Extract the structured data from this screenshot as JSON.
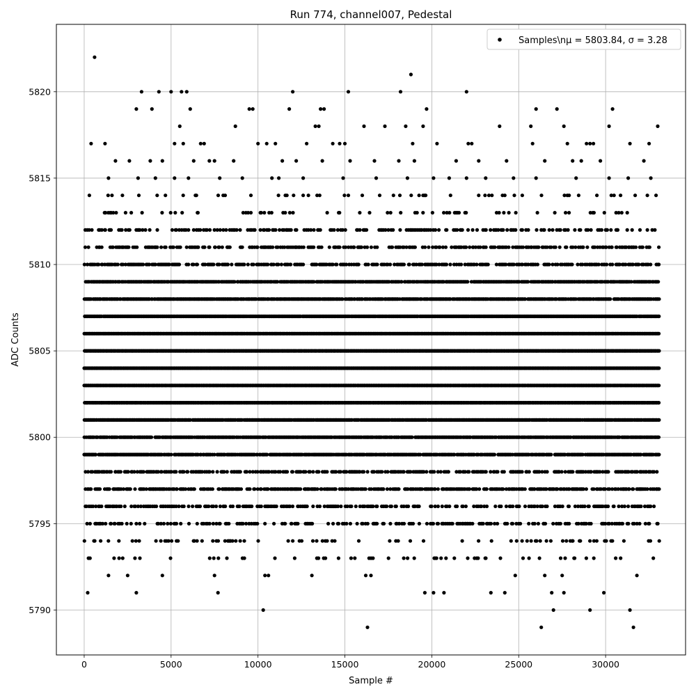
{
  "chart_data": {
    "type": "scatter",
    "title": "Run 774, channel007, Pedestal",
    "xlabel": "Sample #",
    "ylabel": "ADC Counts",
    "xlim": [
      -1600,
      34600
    ],
    "ylim": [
      5787.4,
      5823.9
    ],
    "xticks": [
      0,
      5000,
      10000,
      15000,
      20000,
      25000,
      30000
    ],
    "yticks": [
      5790,
      5795,
      5800,
      5805,
      5810,
      5815,
      5820
    ],
    "grid": true,
    "legend_position": "top-right",
    "marker_color": "#000000",
    "series": [
      {
        "name": "Samples\\nμ = 5803.84, σ = 3.28",
        "x_range": [
          0,
          33100
        ],
        "dense_levels": [
          5796,
          5797,
          5798,
          5799,
          5800,
          5801,
          5802,
          5803,
          5804,
          5805,
          5806,
          5807,
          5808,
          5809,
          5810
        ],
        "level_density": {
          "5788": 0.0,
          "5789": 0.0,
          "5790": 0.0,
          "5791": 0.0,
          "5792": 0.0,
          "5793": 0.08,
          "5794": 0.12,
          "5795": 0.3,
          "5796": 0.42,
          "5797": 0.6,
          "5798": 0.55,
          "5799": 0.85,
          "5800": 0.92,
          "5801": 0.97,
          "5802": 1.0,
          "5803": 1.0,
          "5804": 1.0,
          "5805": 1.0,
          "5806": 1.0,
          "5807": 0.97,
          "5808": 0.92,
          "5809": 0.85,
          "5810": 0.55,
          "5811": 0.42,
          "5812": 0.3,
          "5813": 0.12,
          "5814": 0.08
        },
        "points": [
          [
            600,
            5822
          ],
          [
            3300,
            5820
          ],
          [
            4300,
            5820
          ],
          [
            5000,
            5820
          ],
          [
            5600,
            5820
          ],
          [
            5900,
            5820
          ],
          [
            12000,
            5820
          ],
          [
            15200,
            5820
          ],
          [
            18200,
            5820
          ],
          [
            22000,
            5820
          ],
          [
            18800,
            5821
          ],
          [
            3000,
            5819
          ],
          [
            3900,
            5819
          ],
          [
            6100,
            5819
          ],
          [
            9500,
            5819
          ],
          [
            9700,
            5819
          ],
          [
            11800,
            5819
          ],
          [
            13600,
            5819
          ],
          [
            13800,
            5819
          ],
          [
            19700,
            5819
          ],
          [
            26000,
            5819
          ],
          [
            27200,
            5819
          ],
          [
            30400,
            5819
          ],
          [
            5500,
            5818
          ],
          [
            8700,
            5818
          ],
          [
            13300,
            5818
          ],
          [
            13500,
            5818
          ],
          [
            16100,
            5818
          ],
          [
            17300,
            5818
          ],
          [
            18500,
            5818
          ],
          [
            19500,
            5818
          ],
          [
            23900,
            5818
          ],
          [
            25700,
            5818
          ],
          [
            27600,
            5818
          ],
          [
            30200,
            5818
          ],
          [
            33000,
            5818
          ],
          [
            400,
            5817
          ],
          [
            1200,
            5817
          ],
          [
            5200,
            5817
          ],
          [
            5700,
            5817
          ],
          [
            6700,
            5817
          ],
          [
            6900,
            5817
          ],
          [
            10000,
            5817
          ],
          [
            10500,
            5817
          ],
          [
            11000,
            5817
          ],
          [
            12800,
            5817
          ],
          [
            14300,
            5817
          ],
          [
            14700,
            5817
          ],
          [
            15000,
            5817
          ],
          [
            18900,
            5817
          ],
          [
            20300,
            5817
          ],
          [
            22100,
            5817
          ],
          [
            22300,
            5817
          ],
          [
            25800,
            5817
          ],
          [
            27800,
            5817
          ],
          [
            28900,
            5817
          ],
          [
            29100,
            5817
          ],
          [
            29300,
            5817
          ],
          [
            31400,
            5817
          ],
          [
            32500,
            5817
          ],
          [
            1800,
            5816
          ],
          [
            2600,
            5816
          ],
          [
            3800,
            5816
          ],
          [
            4500,
            5816
          ],
          [
            6300,
            5816
          ],
          [
            7200,
            5816
          ],
          [
            7500,
            5816
          ],
          [
            8600,
            5816
          ],
          [
            11400,
            5816
          ],
          [
            12200,
            5816
          ],
          [
            13700,
            5816
          ],
          [
            15300,
            5816
          ],
          [
            16700,
            5816
          ],
          [
            18100,
            5816
          ],
          [
            19000,
            5816
          ],
          [
            21400,
            5816
          ],
          [
            22700,
            5816
          ],
          [
            24300,
            5816
          ],
          [
            26500,
            5816
          ],
          [
            28100,
            5816
          ],
          [
            28600,
            5816
          ],
          [
            29700,
            5816
          ],
          [
            32200,
            5816
          ],
          [
            1400,
            5815
          ],
          [
            3100,
            5815
          ],
          [
            4100,
            5815
          ],
          [
            5200,
            5815
          ],
          [
            6000,
            5815
          ],
          [
            7800,
            5815
          ],
          [
            9100,
            5815
          ],
          [
            10800,
            5815
          ],
          [
            11200,
            5815
          ],
          [
            12600,
            5815
          ],
          [
            14900,
            5815
          ],
          [
            16800,
            5815
          ],
          [
            18600,
            5815
          ],
          [
            20100,
            5815
          ],
          [
            21000,
            5815
          ],
          [
            22000,
            5815
          ],
          [
            23100,
            5815
          ],
          [
            24700,
            5815
          ],
          [
            26000,
            5815
          ],
          [
            28300,
            5815
          ],
          [
            30200,
            5815
          ],
          [
            31300,
            5815
          ],
          [
            32600,
            5815
          ],
          [
            300,
            5814
          ],
          [
            1600,
            5814
          ],
          [
            2200,
            5814
          ],
          [
            4200,
            5814
          ],
          [
            6400,
            5814
          ],
          [
            8000,
            5814
          ],
          [
            12600,
            5814
          ],
          [
            13400,
            5814
          ],
          [
            15200,
            5814
          ],
          [
            16000,
            5814
          ],
          [
            17000,
            5814
          ],
          [
            19500,
            5814
          ],
          [
            22700,
            5814
          ],
          [
            24200,
            5814
          ],
          [
            27900,
            5814
          ],
          [
            29500,
            5814
          ],
          [
            31700,
            5814
          ]
        ],
        "low_points": [
          [
            200,
            5791
          ],
          [
            1400,
            5792
          ],
          [
            2500,
            5792
          ],
          [
            3000,
            5791
          ],
          [
            4500,
            5792
          ],
          [
            7500,
            5792
          ],
          [
            7700,
            5791
          ],
          [
            10300,
            5790
          ],
          [
            10400,
            5792
          ],
          [
            10600,
            5792
          ],
          [
            13100,
            5792
          ],
          [
            16200,
            5792
          ],
          [
            16300,
            5789
          ],
          [
            16500,
            5792
          ],
          [
            19600,
            5791
          ],
          [
            20100,
            5791
          ],
          [
            20700,
            5791
          ],
          [
            23400,
            5791
          ],
          [
            24200,
            5791
          ],
          [
            24800,
            5792
          ],
          [
            26300,
            5789
          ],
          [
            26500,
            5792
          ],
          [
            26900,
            5791
          ],
          [
            27000,
            5790
          ],
          [
            27500,
            5792
          ],
          [
            27600,
            5791
          ],
          [
            29100,
            5790
          ],
          [
            29900,
            5791
          ],
          [
            31400,
            5790
          ],
          [
            31600,
            5789
          ],
          [
            31800,
            5792
          ]
        ]
      }
    ]
  }
}
